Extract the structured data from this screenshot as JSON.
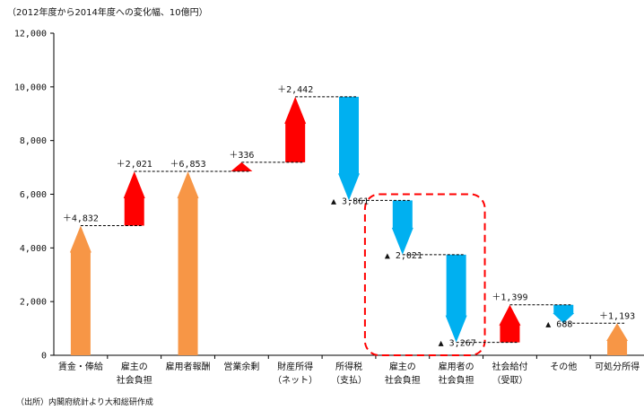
{
  "header": {
    "unit_note": "（2012年度から2014年度への変化幅、10億円）"
  },
  "footer": {
    "source_note": "（出所）内閣府統計より大和総研作成"
  },
  "colors": {
    "total": "#f79646",
    "increase": "#ff0000",
    "decrease": "#00b0f0",
    "connector": "#000000",
    "highlight": "#ff0000"
  },
  "chart_data": {
    "type": "bar",
    "subtype": "waterfall",
    "ylim": [
      0,
      12000
    ],
    "yticks": [
      "0",
      "2,000",
      "4,000",
      "6,000",
      "8,000",
      "10,000",
      "12,000"
    ],
    "grid": false,
    "categories": [
      [
        "賃金・俸給"
      ],
      [
        "雇主の",
        "社会負担"
      ],
      [
        "雇用者報酬"
      ],
      [
        "営業余剰"
      ],
      [
        "財産所得",
        "（ネット）"
      ],
      [
        "所得税",
        "（支払）"
      ],
      [
        "雇主の",
        "社会負担"
      ],
      [
        "雇用者の",
        "社会負担"
      ],
      [
        "社会給付",
        "（受取）"
      ],
      [
        "その他"
      ],
      [
        "可処分所得"
      ]
    ],
    "bars": [
      {
        "kind": "total",
        "from": 0,
        "to": 4832,
        "label": "＋4,832"
      },
      {
        "kind": "increase",
        "from": 4832,
        "to": 6853,
        "label": "＋2,021"
      },
      {
        "kind": "total",
        "from": 0,
        "to": 6853,
        "label": "＋6,853"
      },
      {
        "kind": "increase",
        "from": 6853,
        "to": 7189,
        "label": "＋336"
      },
      {
        "kind": "increase",
        "from": 7189,
        "to": 9631,
        "label": "＋2,442"
      },
      {
        "kind": "decrease",
        "from": 9631,
        "to": 5770,
        "label": "▲ 3,861"
      },
      {
        "kind": "decrease",
        "from": 5770,
        "to": 3749,
        "label": "▲ 2,021"
      },
      {
        "kind": "decrease",
        "from": 3749,
        "to": 482,
        "label": "▲ 3,267"
      },
      {
        "kind": "increase",
        "from": 482,
        "to": 1881,
        "label": "＋1,399"
      },
      {
        "kind": "decrease",
        "from": 1881,
        "to": 1193,
        "label": "▲ 688"
      },
      {
        "kind": "total",
        "from": 0,
        "to": 1193,
        "label": "＋1,193"
      }
    ],
    "highlight_categories": [
      6,
      7
    ]
  }
}
